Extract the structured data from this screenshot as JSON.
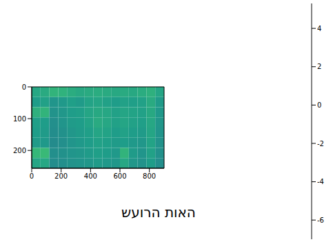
{
  "chart_data": {
    "type": "heatmap",
    "title": "האות הרועש",
    "xlim": [
      0,
      900
    ],
    "xticks": [
      0,
      200,
      400,
      600,
      800
    ],
    "ylim": [
      256,
      0
    ],
    "yticks": [
      0,
      100,
      200
    ],
    "cells": [
      [
        0.3,
        0.5,
        1.0,
        0.9,
        0.6,
        0.4,
        0.5,
        0.6,
        0.5,
        0.4,
        0.5,
        0.4,
        0.6,
        0.8,
        0.2
      ],
      [
        -0.2,
        0.0,
        -0.6,
        -0.4,
        -0.1,
        -0.3,
        0.1,
        0.2,
        0.0,
        -0.2,
        0.0,
        -0.1,
        0.0,
        0.5,
        -0.3
      ],
      [
        0.8,
        1.0,
        -0.7,
        -0.5,
        -0.2,
        -0.1,
        0.2,
        0.4,
        0.3,
        0.0,
        0.2,
        0.1,
        0.0,
        0.4,
        -0.4
      ],
      [
        -0.1,
        -0.2,
        -0.9,
        -0.6,
        -0.3,
        -0.2,
        0.1,
        0.5,
        0.3,
        0.0,
        0.2,
        0.0,
        -0.1,
        0.3,
        -0.5
      ],
      [
        -0.2,
        -0.3,
        -1.0,
        -0.8,
        -0.5,
        -0.3,
        -0.1,
        0.2,
        0.1,
        -0.2,
        0.0,
        -0.2,
        -0.3,
        0.2,
        -0.6
      ],
      [
        -0.3,
        -0.4,
        -1.1,
        -0.9,
        -0.6,
        -0.4,
        -0.2,
        0.0,
        -0.1,
        -0.3,
        -0.2,
        -0.4,
        -0.5,
        0.1,
        -0.7
      ],
      [
        1.2,
        1.3,
        -0.9,
        -0.8,
        -0.6,
        -0.5,
        -0.3,
        -0.1,
        -0.2,
        -0.4,
        1.0,
        -0.3,
        -0.6,
        0.0,
        -0.8
      ],
      [
        0.2,
        0.3,
        -1.0,
        -0.9,
        -0.7,
        -0.6,
        -0.5,
        -0.3,
        -0.4,
        -0.5,
        0.3,
        -0.5,
        -0.7,
        -0.2,
        -0.9
      ]
    ],
    "colorbar": {
      "range": [
        -7,
        5.3
      ],
      "ticks": [
        -6,
        -4,
        -2,
        0,
        2,
        4
      ]
    }
  }
}
